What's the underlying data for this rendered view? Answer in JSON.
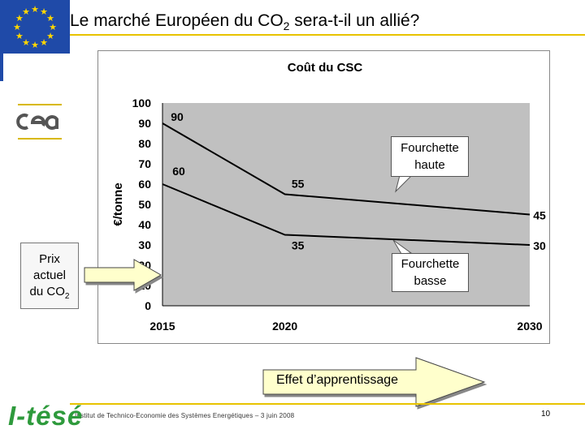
{
  "slide": {
    "title_main": "Le marché Européen du CO",
    "title_sub": "2",
    "title_end": " sera-t-il un allié?",
    "callout_haute_line1": "Fourchette",
    "callout_haute_line2": "haute",
    "callout_basse_line1": "Fourchette",
    "callout_basse_line2": "basse",
    "prix_line1": "Prix",
    "prix_line2": "actuel",
    "prix_line3": "du CO",
    "prix_sub": "2",
    "effet_label": "Effet d’apprentissage",
    "footer_text": "Institut de Technico-Economie des Systèmes Energétiques – 3 juin 2008",
    "page_number": "10",
    "logo_text": "I-tésé"
  },
  "colors": {
    "eu_blue": "#1f4aa8",
    "eu_star": "#ffd700",
    "accent_yellow": "#e8c300",
    "plot_bg": "#c0c0c0",
    "arrow_fill": "#ffffcc",
    "logo_green": "#2e9a3c"
  },
  "chart_data": {
    "type": "line",
    "title": "Coût du CSC",
    "ylabel": "€/tonne",
    "xlabel": "",
    "x": [
      2015,
      2020,
      2030
    ],
    "x_tick_labels": [
      "2015",
      "2020",
      "2030"
    ],
    "ylim": [
      0,
      100
    ],
    "y_ticks": [
      0,
      10,
      20,
      30,
      40,
      50,
      60,
      70,
      80,
      90,
      100
    ],
    "grid": false,
    "series": [
      {
        "values": [
          90,
          55,
          45
        ],
        "labels": [
          "90",
          "55",
          "45"
        ]
      },
      {
        "values": [
          60,
          35,
          30
        ],
        "labels": [
          "60",
          "35",
          "30"
        ]
      }
    ]
  }
}
